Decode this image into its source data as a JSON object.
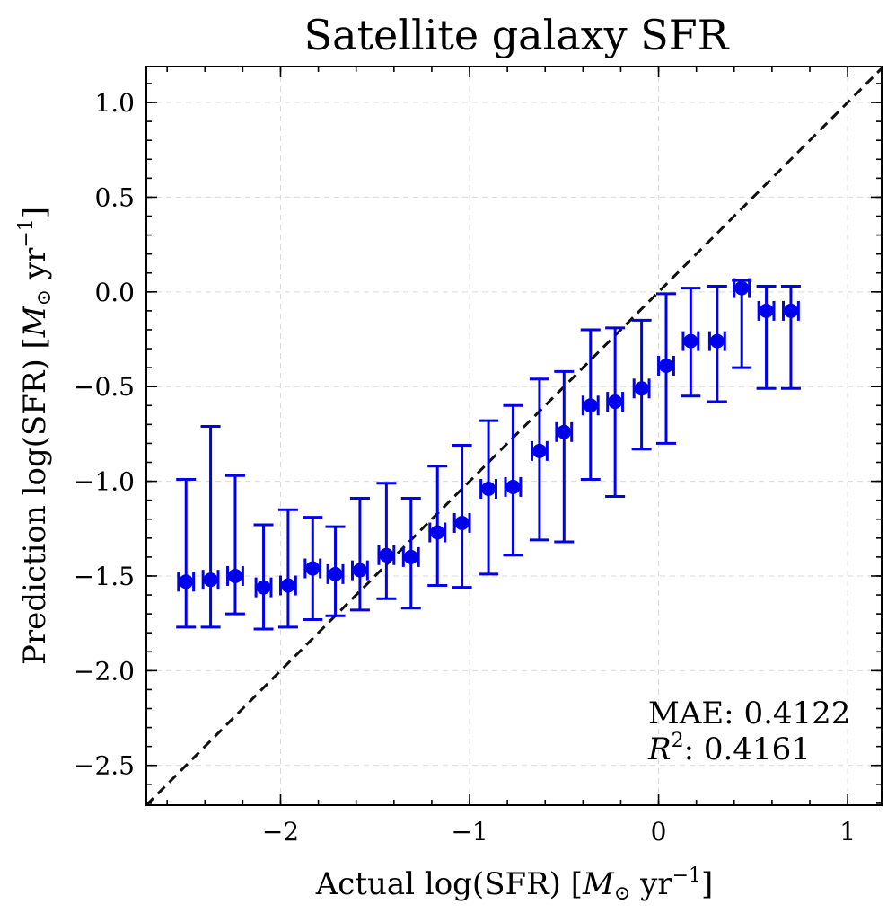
{
  "chart_data": {
    "type": "scatter",
    "title": "Satellite galaxy SFR",
    "xlabel": "Actual log(SFR) [M⊙ yr⁻¹]",
    "ylabel": "Prediction log(SFR) [M⊙ yr⁻¹]",
    "xlim": [
      -2.71,
      1.18
    ],
    "ylim": [
      -2.71,
      1.19
    ],
    "xticks": [
      -2,
      -1,
      0,
      1
    ],
    "xtick_labels": [
      "−2",
      "−1",
      "0",
      "1"
    ],
    "yticks": [
      1.0,
      0.5,
      0.0,
      -0.5,
      -1.0,
      -1.5,
      -2.0,
      -2.5
    ],
    "ytick_labels": [
      "1.0",
      "0.5",
      "0.0",
      "−0.5",
      "−1.0",
      "−1.5",
      "−2.0",
      "−2.5"
    ],
    "grid": true,
    "reference_line": "y = x",
    "series": [
      {
        "name": "binned predictions",
        "color": "#0000ee",
        "x": [
          -2.5,
          -2.37,
          -2.24,
          -2.09,
          -1.96,
          -1.83,
          -1.71,
          -1.58,
          -1.44,
          -1.31,
          -1.17,
          -1.04,
          -0.9,
          -0.77,
          -0.63,
          -0.5,
          -0.36,
          -0.23,
          -0.09,
          0.04,
          0.17,
          0.31,
          0.44,
          0.57,
          0.7
        ],
        "y": [
          -1.53,
          -1.52,
          -1.5,
          -1.56,
          -1.55,
          -1.46,
          -1.49,
          -1.47,
          -1.39,
          -1.4,
          -1.27,
          -1.22,
          -1.04,
          -1.03,
          -0.84,
          -0.74,
          -0.6,
          -0.58,
          -0.51,
          -0.39,
          -0.26,
          -0.26,
          0.02,
          -0.1,
          -0.1
        ],
        "y_lower": [
          -1.77,
          -1.77,
          -1.7,
          -1.78,
          -1.77,
          -1.73,
          -1.71,
          -1.68,
          -1.62,
          -1.67,
          -1.55,
          -1.56,
          -1.49,
          -1.39,
          -1.31,
          -1.32,
          -0.99,
          -1.08,
          -0.83,
          -0.8,
          -0.55,
          -0.58,
          -0.4,
          -0.51,
          -0.51
        ],
        "y_upper": [
          -0.99,
          -0.71,
          -0.97,
          -1.23,
          -1.15,
          -1.19,
          -1.24,
          -1.09,
          -1.01,
          -1.09,
          -0.92,
          -0.81,
          -0.68,
          -0.6,
          -0.46,
          -0.42,
          -0.2,
          -0.19,
          -0.15,
          -0.01,
          0.02,
          0.03,
          0.06,
          0.03,
          0.03
        ],
        "x_err": 0.04
      }
    ],
    "annotations": {
      "mae": "MAE: 0.4122",
      "r2_symbol": "R",
      "r2_exp": "2",
      "r2_value": ": 0.4161"
    }
  }
}
